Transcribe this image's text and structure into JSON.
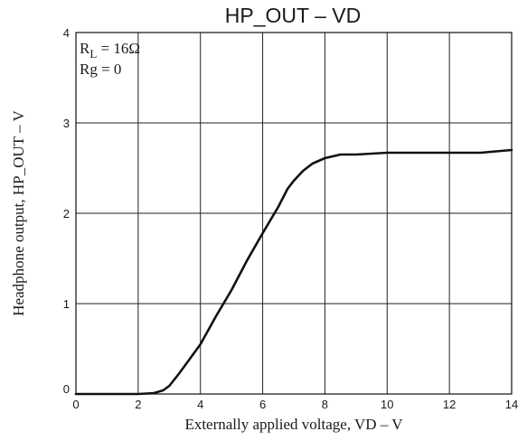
{
  "chart_data": {
    "type": "line",
    "title": "HP_OUT  –  VD",
    "xlabel": "Externally applied voltage, VD  –  V",
    "ylabel": "Headphone output, HP_OUT  –  V",
    "xlim": [
      0,
      14
    ],
    "ylim": [
      0,
      4
    ],
    "x_ticks": [
      "0",
      "2",
      "4",
      "6",
      "8",
      "10",
      "12",
      "14"
    ],
    "y_ticks": [
      "0",
      "1",
      "2",
      "3",
      "4"
    ],
    "grid": true,
    "annotation": {
      "rl_main": "R",
      "rl_sub": "L",
      "rl_value": " = 16Ω",
      "rg": "Rg = 0"
    },
    "series": [
      {
        "x": [
          0,
          2,
          2.5,
          2.8,
          3.0,
          3.3,
          3.6,
          4.0,
          4.5,
          5.0,
          5.5,
          6.0,
          6.5,
          6.8,
          7.0,
          7.3,
          7.6,
          8.0,
          8.5,
          9.0,
          10.0,
          11.0,
          12.0,
          13.0,
          14.0
        ],
        "y": [
          0,
          0,
          0.01,
          0.04,
          0.09,
          0.22,
          0.36,
          0.55,
          0.86,
          1.15,
          1.48,
          1.78,
          2.07,
          2.27,
          2.36,
          2.47,
          2.55,
          2.61,
          2.65,
          2.65,
          2.67,
          2.67,
          2.67,
          2.67,
          2.7
        ]
      }
    ],
    "line_color": "#111111"
  }
}
